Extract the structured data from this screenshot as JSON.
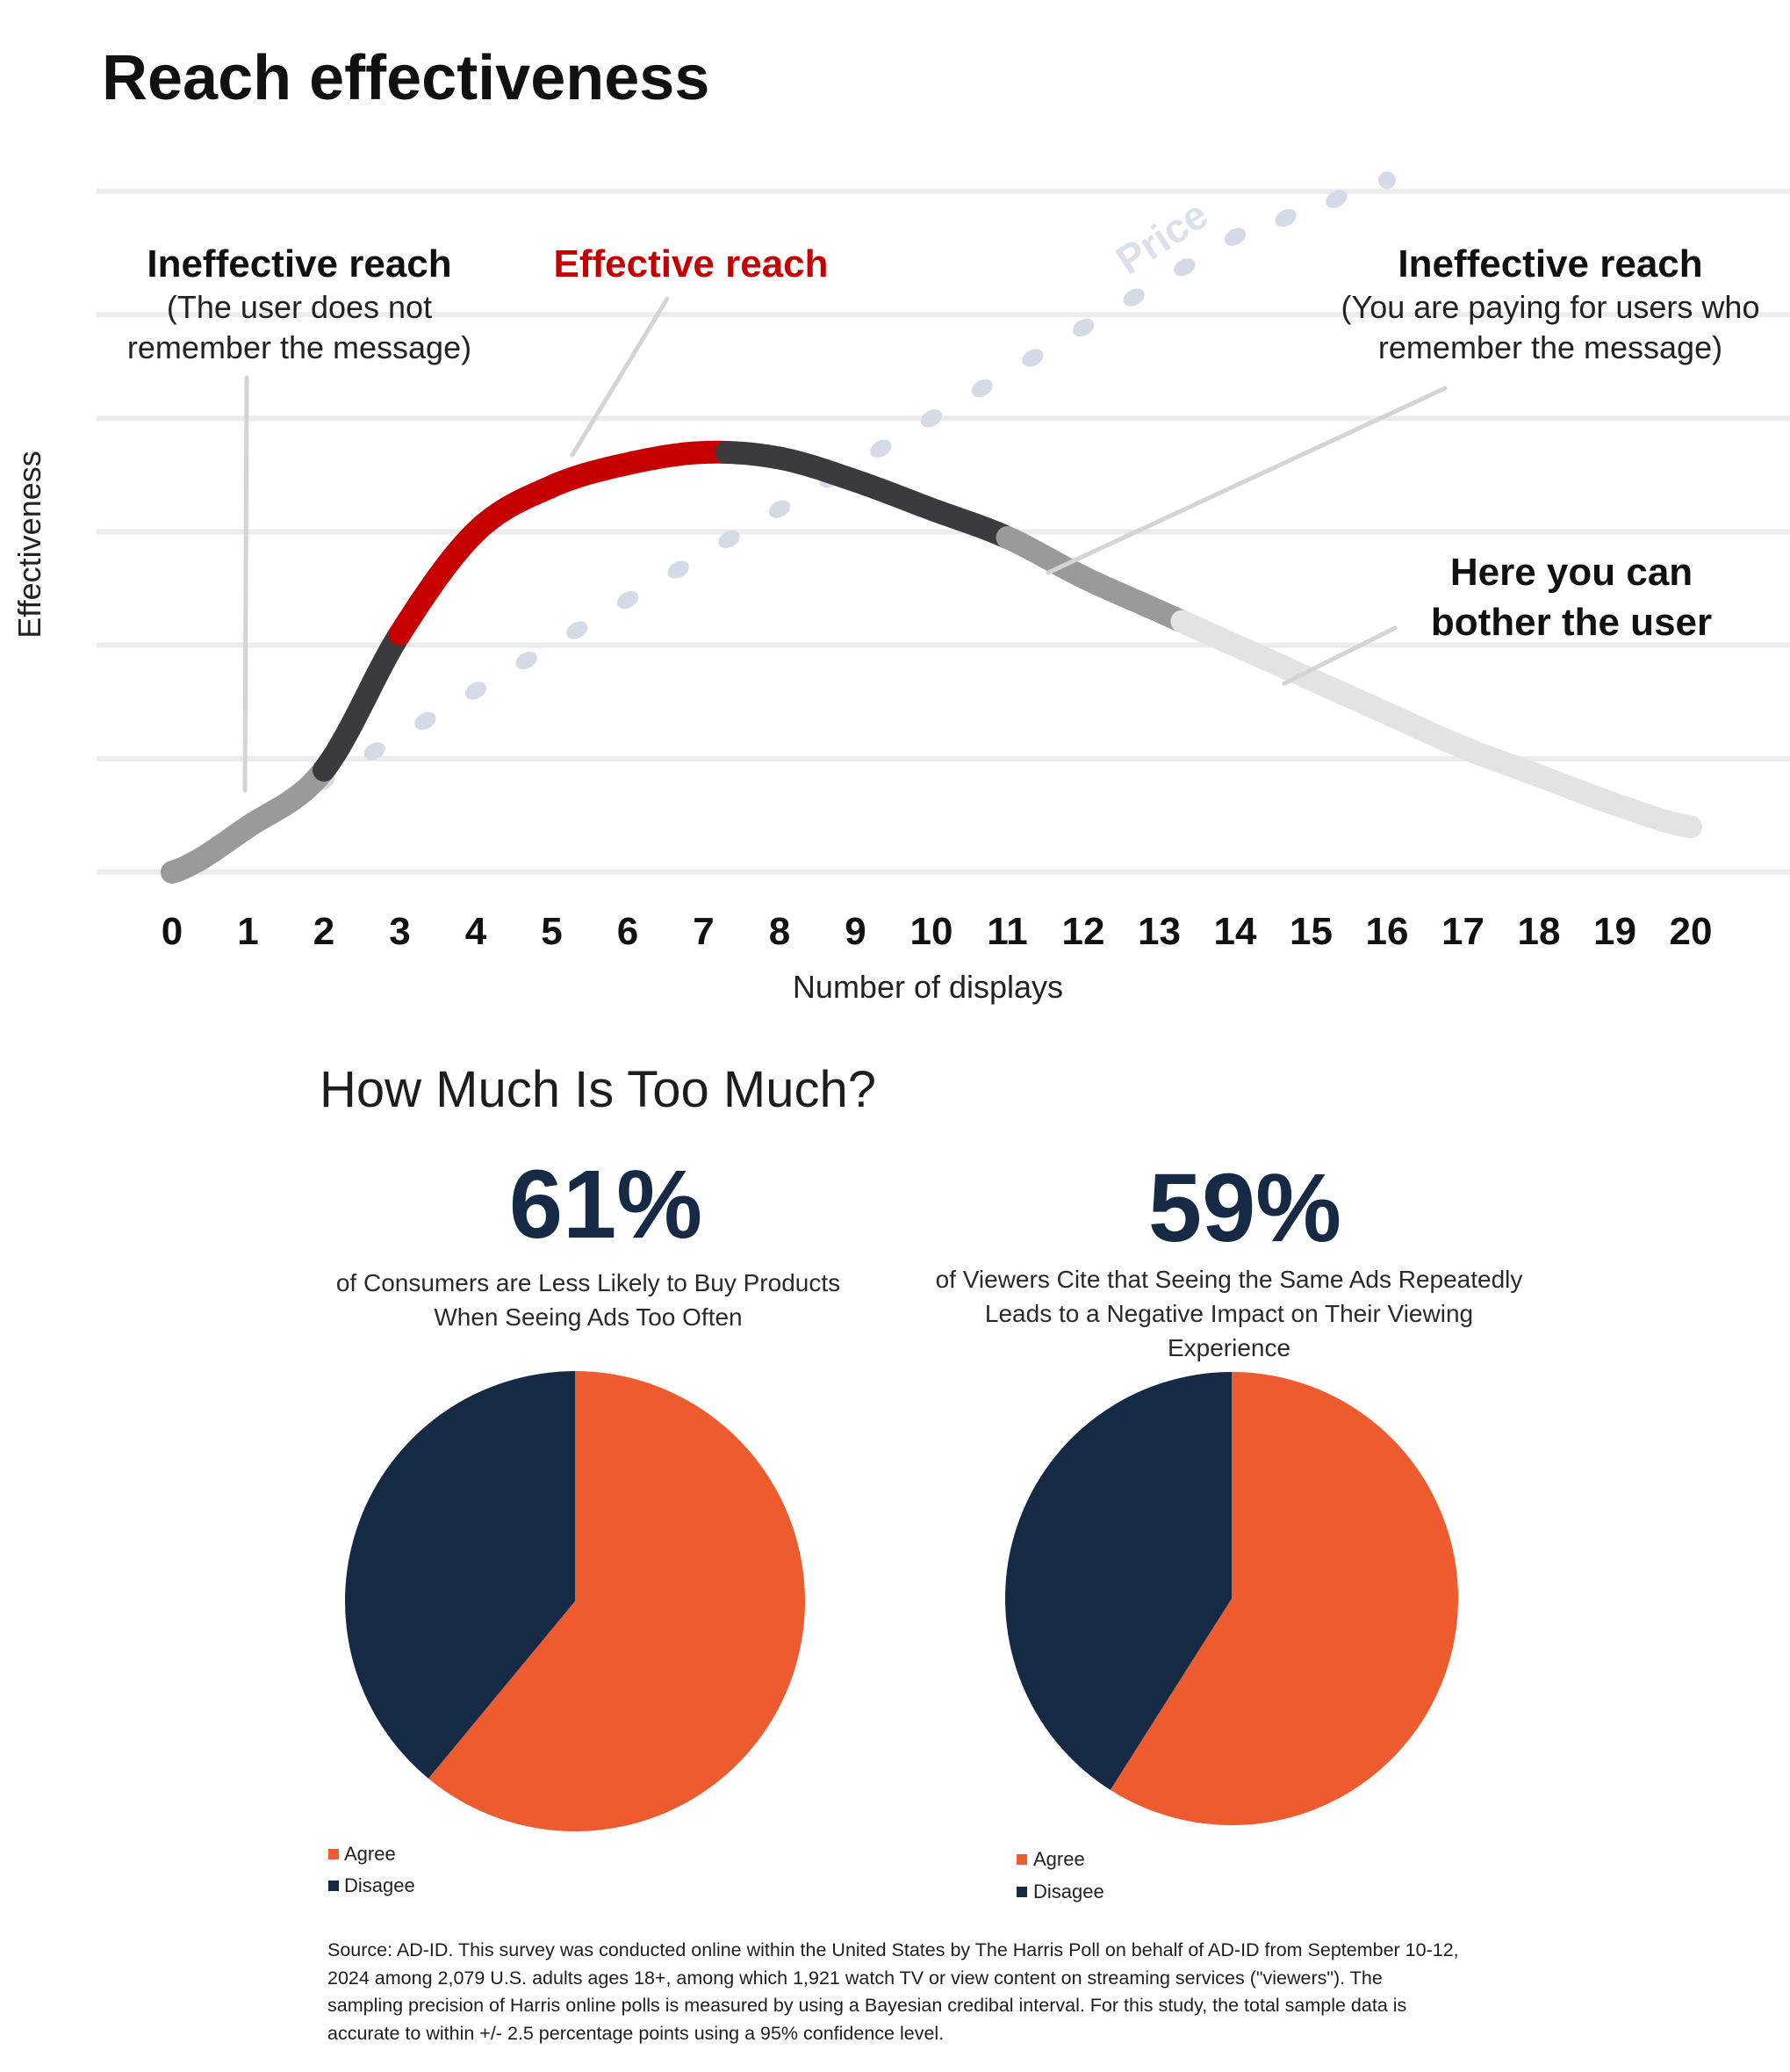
{
  "colors": {
    "red": "#c60000",
    "dark": "#3b3b3d",
    "mid_gray": "#9a9a9a",
    "light_gray": "#e3e3e3",
    "price_dots": "#d4dae6",
    "navy": "#172a45",
    "orange": "#ee5b2e",
    "grid": "#ececec"
  },
  "chart_data": [
    {
      "type": "line",
      "title": "Reach effectiveness",
      "xlabel": "Number of displays",
      "ylabel": "Effectiveness",
      "x_ticks": [
        "0",
        "1",
        "2",
        "3",
        "4",
        "5",
        "6",
        "7",
        "8",
        "9",
        "10",
        "11",
        "12",
        "13",
        "14",
        "15",
        "16",
        "17",
        "18",
        "19",
        "20"
      ],
      "xlim": [
        0,
        20
      ],
      "ylim": [
        0,
        6
      ],
      "grid": true,
      "series": [
        {
          "name": "",
          "x": [
            0,
            1,
            2,
            3,
            4,
            5,
            6,
            7,
            8,
            9,
            10,
            11,
            12,
            13,
            14,
            15,
            16,
            17,
            18,
            19,
            20
          ],
          "y": [
            0.0,
            0.4,
            0.9,
            2.1,
            3.0,
            3.4,
            3.6,
            3.7,
            3.65,
            3.45,
            3.2,
            2.95,
            2.6,
            2.3,
            2.0,
            1.7,
            1.4,
            1.1,
            0.85,
            0.6,
            0.4
          ],
          "segments": [
            {
              "from": 0,
              "to": 2,
              "color": "#9a9a9a"
            },
            {
              "from": 2,
              "to": 3,
              "color": "#3b3b3d"
            },
            {
              "from": 3,
              "to": 7.3,
              "color": "#c60000"
            },
            {
              "from": 7.3,
              "to": 11,
              "color": "#3b3b3d"
            },
            {
              "from": 11,
              "to": 13.3,
              "color": "#9a9a9a"
            },
            {
              "from": 13.3,
              "to": 20,
              "color": "#e3e3e3"
            }
          ]
        },
        {
          "name": "Price",
          "style": "dotted",
          "x": [
            0,
            2,
            4,
            6,
            8,
            10,
            12,
            14,
            16
          ],
          "y": [
            0.0,
            0.8,
            1.6,
            2.4,
            3.2,
            4.0,
            4.8,
            5.6,
            6.1
          ]
        }
      ],
      "annotations": [
        {
          "title": "Ineffective reach",
          "lines": [
            "(The user does not",
            "remember the message)"
          ],
          "x": 1
        },
        {
          "title": "Effective reach",
          "lines": [],
          "x": 6
        },
        {
          "title": "Ineffective reach",
          "lines": [
            "(You are paying for users who",
            "remember the message)"
          ],
          "x": 12.3
        },
        {
          "title": "",
          "lines": [
            "Here you can",
            "bother the user"
          ],
          "x": 14
        }
      ]
    },
    {
      "type": "pie",
      "headline": "61%",
      "caption_lines": [
        "of Consumers are Less Likely to Buy Products",
        "When Seeing Ads Too Often"
      ],
      "slices": [
        {
          "label": "Agree",
          "value": 61,
          "color": "#ee5b2e"
        },
        {
          "label": "Disagee",
          "value": 39,
          "color": "#172a45"
        }
      ]
    },
    {
      "type": "pie",
      "headline": "59%",
      "caption_lines": [
        "of Viewers Cite that Seeing the Same Ads Repeatedly",
        "Leads to a Negative Impact on Their Viewing",
        "Experience"
      ],
      "slices": [
        {
          "label": "Agree",
          "value": 59,
          "color": "#ee5b2e"
        },
        {
          "label": "Disagee",
          "value": 41,
          "color": "#172a45"
        }
      ]
    }
  ],
  "section2_title": "How Much Is Too Much?",
  "source_text": "Source: AD-ID.  This survey was conducted online within the United States by The Harris Poll on behalf of AD-ID from September 10-12, 2024 among 2,079 U.S. adults ages 18+, among which 1,921 watch TV or view content on streaming services (\"viewers\"). The sampling precision of Harris online polls is measured by using a Bayesian credibal interval. For this study, the total sample data is accurate to within +/- 2.5 percentage points using a 95% confidence level."
}
